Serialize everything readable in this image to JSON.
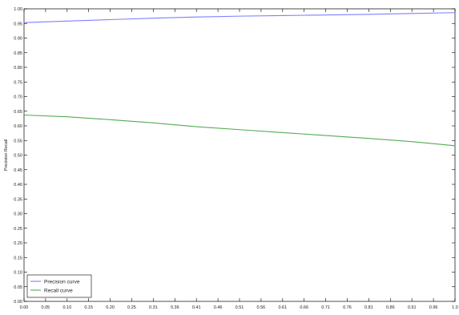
{
  "chart_data": {
    "type": "line",
    "title": "",
    "xlabel": "",
    "ylabel": "Precision Recall",
    "xlim": [
      0.0,
      1.0
    ],
    "ylim": [
      0.0,
      1.0
    ],
    "grid": false,
    "legend_position": "bottom-left",
    "xticks": [
      "0.00",
      "0.05",
      "0.10",
      "0.15",
      "0.20",
      "0.25",
      "0.31",
      "0.36",
      "0.41",
      "0.46",
      "0.51",
      "0.56",
      "0.61",
      "0.66",
      "0.71",
      "0.76",
      "0.81",
      "0.86",
      "0.91",
      "0.96",
      "1.0"
    ],
    "yticks": [
      "0.00",
      "0.05",
      "0.10",
      "0.15",
      "0.20",
      "0.25",
      "0.30",
      "0.35",
      "0.40",
      "0.45",
      "0.50",
      "0.55",
      "0.60",
      "0.65",
      "0.70",
      "0.75",
      "0.80",
      "0.85",
      "0.90",
      "0.95",
      "1.00"
    ],
    "series": [
      {
        "name": "Precision curve",
        "color": "#7f7fff",
        "x": [
          0.0,
          0.1,
          0.2,
          0.3,
          0.4,
          0.5,
          0.6,
          0.7,
          0.8,
          0.9,
          1.0
        ],
        "y": [
          0.953,
          0.958,
          0.963,
          0.968,
          0.972,
          0.975,
          0.977,
          0.979,
          0.981,
          0.984,
          0.987
        ]
      },
      {
        "name": "Recall curve",
        "color": "#55aa55",
        "x": [
          0.0,
          0.1,
          0.2,
          0.3,
          0.4,
          0.5,
          0.6,
          0.7,
          0.8,
          0.9,
          1.0
        ],
        "y": [
          0.637,
          0.631,
          0.621,
          0.61,
          0.597,
          0.587,
          0.577,
          0.567,
          0.557,
          0.546,
          0.532
        ]
      }
    ]
  }
}
